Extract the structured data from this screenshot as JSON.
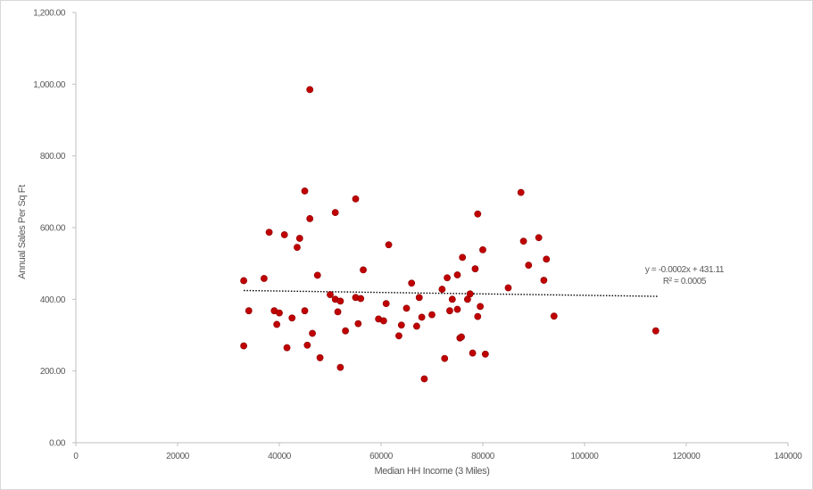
{
  "chart_data": {
    "type": "scatter",
    "xlabel": "Median HH Income (3 Miles)",
    "ylabel": "Annual Sales Per Sq Ft",
    "xlim": [
      0,
      140000
    ],
    "ylim": [
      0,
      1200
    ],
    "x_ticks": [
      "0",
      "20000",
      "40000",
      "60000",
      "80000",
      "100000",
      "120000",
      "140000"
    ],
    "y_ticks": [
      "0.00",
      "200.00",
      "400.00",
      "600.00",
      "800.00",
      "1,000.00",
      "1,200.00"
    ],
    "grid": false,
    "marker_color": "#c00000",
    "trendline": {
      "style": "dotted",
      "equation": "y = -0.0002x + 431.11",
      "r_squared": "R² = 0.0005",
      "x_range": [
        33000,
        114500
      ],
      "slope": -0.0002,
      "intercept": 431.11
    },
    "points": [
      {
        "x": 33000,
        "y": 452
      },
      {
        "x": 33000,
        "y": 270
      },
      {
        "x": 34000,
        "y": 368
      },
      {
        "x": 37000,
        "y": 458
      },
      {
        "x": 38000,
        "y": 587
      },
      {
        "x": 39000,
        "y": 368
      },
      {
        "x": 39500,
        "y": 330
      },
      {
        "x": 40000,
        "y": 362
      },
      {
        "x": 41000,
        "y": 580
      },
      {
        "x": 41500,
        "y": 265
      },
      {
        "x": 42500,
        "y": 348
      },
      {
        "x": 43500,
        "y": 545
      },
      {
        "x": 44000,
        "y": 570
      },
      {
        "x": 45000,
        "y": 702
      },
      {
        "x": 45000,
        "y": 368
      },
      {
        "x": 45500,
        "y": 272
      },
      {
        "x": 46000,
        "y": 625
      },
      {
        "x": 46000,
        "y": 985
      },
      {
        "x": 46500,
        "y": 305
      },
      {
        "x": 47500,
        "y": 467
      },
      {
        "x": 48000,
        "y": 237
      },
      {
        "x": 50000,
        "y": 413
      },
      {
        "x": 51000,
        "y": 400
      },
      {
        "x": 51000,
        "y": 642
      },
      {
        "x": 51500,
        "y": 365
      },
      {
        "x": 52000,
        "y": 395
      },
      {
        "x": 52000,
        "y": 210
      },
      {
        "x": 53000,
        "y": 312
      },
      {
        "x": 55000,
        "y": 680
      },
      {
        "x": 55000,
        "y": 405
      },
      {
        "x": 55500,
        "y": 332
      },
      {
        "x": 56000,
        "y": 402
      },
      {
        "x": 56500,
        "y": 482
      },
      {
        "x": 59500,
        "y": 345
      },
      {
        "x": 60500,
        "y": 340
      },
      {
        "x": 61000,
        "y": 388
      },
      {
        "x": 61500,
        "y": 552
      },
      {
        "x": 63500,
        "y": 298
      },
      {
        "x": 64000,
        "y": 328
      },
      {
        "x": 65000,
        "y": 375
      },
      {
        "x": 66000,
        "y": 445
      },
      {
        "x": 67000,
        "y": 325
      },
      {
        "x": 67500,
        "y": 405
      },
      {
        "x": 68000,
        "y": 350
      },
      {
        "x": 68500,
        "y": 178
      },
      {
        "x": 70000,
        "y": 357
      },
      {
        "x": 72000,
        "y": 428
      },
      {
        "x": 72500,
        "y": 235
      },
      {
        "x": 73000,
        "y": 460
      },
      {
        "x": 73500,
        "y": 368
      },
      {
        "x": 74000,
        "y": 400
      },
      {
        "x": 75000,
        "y": 468
      },
      {
        "x": 75000,
        "y": 372
      },
      {
        "x": 75500,
        "y": 292
      },
      {
        "x": 75800,
        "y": 295
      },
      {
        "x": 76000,
        "y": 517
      },
      {
        "x": 77000,
        "y": 400
      },
      {
        "x": 77500,
        "y": 415
      },
      {
        "x": 78000,
        "y": 250
      },
      {
        "x": 78500,
        "y": 485
      },
      {
        "x": 79000,
        "y": 638
      },
      {
        "x": 79000,
        "y": 352
      },
      {
        "x": 79500,
        "y": 380
      },
      {
        "x": 80000,
        "y": 538
      },
      {
        "x": 80500,
        "y": 247
      },
      {
        "x": 85000,
        "y": 432
      },
      {
        "x": 87500,
        "y": 698
      },
      {
        "x": 88000,
        "y": 562
      },
      {
        "x": 89000,
        "y": 495
      },
      {
        "x": 91000,
        "y": 572
      },
      {
        "x": 92000,
        "y": 453
      },
      {
        "x": 92500,
        "y": 512
      },
      {
        "x": 94000,
        "y": 353
      },
      {
        "x": 114000,
        "y": 312
      }
    ]
  }
}
